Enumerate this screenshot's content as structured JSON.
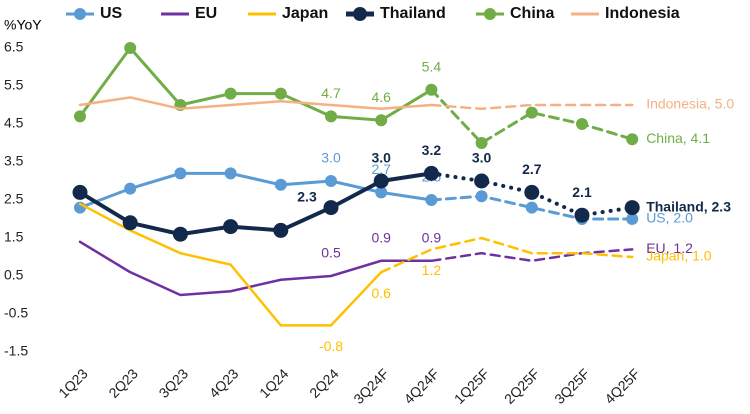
{
  "chart_data": {
    "type": "line",
    "y_label": "%YoY",
    "categories": [
      "1Q23",
      "2Q23",
      "3Q23",
      "4Q23",
      "1Q24",
      "2Q24",
      "3Q24F",
      "4Q24F",
      "1Q25F",
      "2Q25F",
      "3Q25F",
      "4Q25F"
    ],
    "ylim": [
      -1.5,
      6.5
    ],
    "yticks": [
      6.5,
      5.5,
      4.5,
      3.5,
      2.5,
      1.5,
      0.5,
      -0.5,
      -1.5
    ],
    "series": [
      {
        "name": "US",
        "color": "#5b9bd5",
        "markers": true,
        "forecast_from": 7,
        "forecast_style": "dashed",
        "values": [
          2.3,
          2.8,
          3.2,
          3.2,
          2.9,
          3.0,
          2.7,
          2.5,
          2.6,
          2.3,
          2.0,
          2.0
        ],
        "value_labels": [
          null,
          null,
          null,
          null,
          null,
          "3.0",
          "2.7",
          "2.5",
          null,
          null,
          null,
          "US, 2.0"
        ]
      },
      {
        "name": "EU",
        "color": "#7030a0",
        "markers": false,
        "forecast_from": 7,
        "forecast_style": "dashed",
        "values": [
          1.4,
          0.6,
          0.0,
          0.1,
          0.4,
          0.5,
          0.9,
          0.9,
          1.1,
          0.9,
          1.1,
          1.2
        ],
        "value_labels": [
          null,
          null,
          null,
          null,
          null,
          "0.5",
          "0.9",
          "0.9",
          null,
          null,
          null,
          "EU, 1.2"
        ]
      },
      {
        "name": "Japan",
        "color": "#ffc000",
        "markers": false,
        "forecast_from": 6,
        "forecast_style": "dashed",
        "values": [
          2.4,
          1.7,
          1.1,
          0.8,
          -0.8,
          -0.8,
          0.6,
          1.2,
          1.5,
          1.1,
          1.1,
          1.0
        ],
        "value_labels": [
          null,
          null,
          null,
          null,
          null,
          "-0.8",
          "0.6",
          "1.2",
          null,
          null,
          null,
          "Japan, 1.0"
        ]
      },
      {
        "name": "Thailand",
        "color": "#13294b",
        "markers": true,
        "forecast_from": 7,
        "forecast_style": "dotted",
        "values": [
          2.7,
          1.9,
          1.6,
          1.8,
          1.7,
          2.3,
          3.0,
          3.2,
          3.0,
          2.7,
          2.1,
          2.3
        ],
        "value_labels": [
          null,
          null,
          null,
          null,
          null,
          "2.3",
          "3.0",
          "3.2",
          "3.0",
          "2.7",
          "2.1",
          "Thailand, 2.3"
        ]
      },
      {
        "name": "China",
        "color": "#70ad47",
        "markers": true,
        "forecast_from": 7,
        "forecast_style": "dashed",
        "values": [
          4.7,
          6.5,
          5.0,
          5.3,
          5.3,
          4.7,
          4.6,
          5.4,
          4.0,
          4.8,
          4.5,
          4.1
        ],
        "value_labels": [
          null,
          null,
          null,
          null,
          null,
          "4.7",
          "4.6",
          "5.4",
          null,
          null,
          null,
          "China, 4.1"
        ]
      },
      {
        "name": "Indonesia",
        "color": "#f4b183",
        "markers": false,
        "forecast_from": 7,
        "forecast_style": "dashed",
        "values": [
          5.0,
          5.2,
          4.9,
          5.0,
          5.1,
          5.0,
          4.9,
          5.0,
          4.9,
          5.0,
          5.0,
          5.0
        ],
        "value_labels": [
          null,
          null,
          null,
          null,
          null,
          null,
          null,
          null,
          null,
          null,
          null,
          "Indonesia, 5.0"
        ]
      }
    ]
  }
}
